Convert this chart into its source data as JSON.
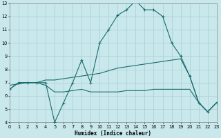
{
  "xlabel": "Humidex (Indice chaleur)",
  "xlim": [
    0,
    23
  ],
  "ylim": [
    4,
    13
  ],
  "xtick_labels": [
    "0",
    "1",
    "2",
    "3",
    "4",
    "5",
    "6",
    "7",
    "8",
    "9",
    "10",
    "11",
    "12",
    "13",
    "14",
    "15",
    "16",
    "17",
    "18",
    "19",
    "20",
    "21",
    "22",
    "23"
  ],
  "xticks": [
    0,
    1,
    2,
    3,
    4,
    5,
    6,
    7,
    8,
    9,
    10,
    11,
    12,
    13,
    14,
    15,
    16,
    17,
    18,
    19,
    20,
    21,
    22,
    23
  ],
  "yticks": [
    4,
    5,
    6,
    7,
    8,
    9,
    10,
    11,
    12,
    13
  ],
  "bg_color": "#c8e8ec",
  "grid_color": "#a8cdd4",
  "line_color": "#1a6b6b",
  "line1": {
    "x": [
      0,
      1,
      2,
      3,
      4,
      5,
      6,
      7,
      8,
      9,
      10,
      11,
      12,
      13,
      14,
      15,
      16,
      17,
      18,
      19,
      20,
      21,
      22,
      23
    ],
    "y": [
      6.5,
      7.0,
      7.0,
      7.0,
      7.0,
      4.0,
      5.5,
      7.0,
      8.7,
      7.0,
      10.0,
      11.0,
      12.1,
      12.5,
      13.2,
      12.5,
      12.5,
      12.0,
      10.0,
      9.0,
      7.5,
      5.5,
      4.8,
      5.5
    ],
    "marker": "+"
  },
  "line2": {
    "x": [
      0,
      2,
      3,
      4,
      5,
      6,
      7,
      8,
      9,
      10,
      11,
      12,
      13,
      14,
      15,
      16,
      17,
      18,
      19,
      20,
      21,
      22,
      23
    ],
    "y": [
      6.8,
      7.0,
      7.0,
      7.2,
      7.2,
      7.3,
      7.4,
      7.5,
      7.6,
      7.7,
      7.9,
      8.1,
      8.2,
      8.3,
      8.4,
      8.5,
      8.6,
      8.7,
      8.8,
      7.5,
      5.5,
      4.8,
      5.5
    ],
    "marker": ""
  },
  "line3": {
    "x": [
      0,
      1,
      2,
      3,
      4,
      5,
      6,
      7,
      8,
      9,
      10,
      11,
      12,
      13,
      14,
      15,
      16,
      17,
      18,
      19,
      20,
      21,
      22,
      23
    ],
    "y": [
      6.5,
      7.0,
      7.0,
      7.0,
      6.8,
      6.3,
      6.3,
      6.4,
      6.5,
      6.3,
      6.3,
      6.3,
      6.3,
      6.4,
      6.4,
      6.4,
      6.5,
      6.5,
      6.5,
      6.5,
      6.5,
      5.5,
      4.8,
      5.5
    ],
    "marker": ""
  }
}
